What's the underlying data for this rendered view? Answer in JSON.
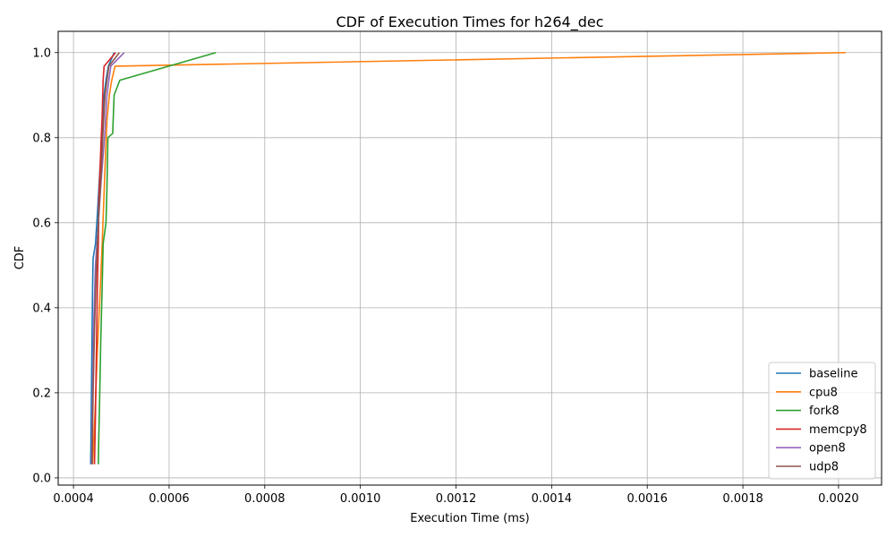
{
  "chart_data": {
    "type": "line",
    "title": "CDF of Execution Times for h264_dec",
    "xlabel": "Execution Time (ms)",
    "ylabel": "CDF",
    "xlim": [
      0.000368,
      0.00209
    ],
    "ylim": [
      -0.017,
      1.05
    ],
    "xticks": [
      {
        "value": 0.0004,
        "label": "0.0004"
      },
      {
        "value": 0.0006,
        "label": "0.0006"
      },
      {
        "value": 0.0008,
        "label": "0.0008"
      },
      {
        "value": 0.001,
        "label": "0.0010"
      },
      {
        "value": 0.0012,
        "label": "0.0012"
      },
      {
        "value": 0.0014,
        "label": "0.0014"
      },
      {
        "value": 0.0016,
        "label": "0.0016"
      },
      {
        "value": 0.0018,
        "label": "0.0018"
      },
      {
        "value": 0.002,
        "label": "0.0020"
      }
    ],
    "yticks": [
      {
        "value": 0.0,
        "label": "0.0"
      },
      {
        "value": 0.2,
        "label": "0.2"
      },
      {
        "value": 0.4,
        "label": "0.4"
      },
      {
        "value": 0.6,
        "label": "0.6"
      },
      {
        "value": 0.8,
        "label": "0.8"
      },
      {
        "value": 1.0,
        "label": "1.0"
      }
    ],
    "grid": true,
    "legend_position": "bottom-right",
    "series": [
      {
        "name": "baseline",
        "color": "#1f77b4",
        "points": [
          [
            0.000436,
            0.032
          ],
          [
            0.000437,
            0.13
          ],
          [
            0.000438,
            0.25
          ],
          [
            0.000439,
            0.35
          ],
          [
            0.00044,
            0.45
          ],
          [
            0.000441,
            0.516
          ],
          [
            0.000446,
            0.55
          ],
          [
            0.00045,
            0.62
          ],
          [
            0.000455,
            0.72
          ],
          [
            0.00046,
            0.8
          ],
          [
            0.000464,
            0.9
          ],
          [
            0.000468,
            0.935
          ],
          [
            0.000473,
            0.968
          ],
          [
            0.000485,
            1.0
          ]
        ]
      },
      {
        "name": "cpu8",
        "color": "#ff7f0e",
        "points": [
          [
            0.00044,
            0.032
          ],
          [
            0.000445,
            0.15
          ],
          [
            0.00045,
            0.3
          ],
          [
            0.000455,
            0.42
          ],
          [
            0.00046,
            0.55
          ],
          [
            0.000465,
            0.7
          ],
          [
            0.00047,
            0.84
          ],
          [
            0.000475,
            0.9
          ],
          [
            0.00048,
            0.935
          ],
          [
            0.000487,
            0.968
          ],
          [
            0.002015,
            1.0
          ]
        ]
      },
      {
        "name": "fork8",
        "color": "#2ca02c",
        "points": [
          [
            0.000452,
            0.032
          ],
          [
            0.000453,
            0.1
          ],
          [
            0.000455,
            0.2
          ],
          [
            0.000457,
            0.32
          ],
          [
            0.00046,
            0.45
          ],
          [
            0.000462,
            0.55
          ],
          [
            0.000468,
            0.6
          ],
          [
            0.00047,
            0.68
          ],
          [
            0.000472,
            0.8
          ],
          [
            0.000482,
            0.81
          ],
          [
            0.000483,
            0.84
          ],
          [
            0.000485,
            0.9
          ],
          [
            0.000497,
            0.935
          ],
          [
            0.000698,
            1.0
          ]
        ]
      },
      {
        "name": "memcpy8",
        "color": "#d62728",
        "points": [
          [
            0.000444,
            0.032
          ],
          [
            0.000446,
            0.15
          ],
          [
            0.000448,
            0.3
          ],
          [
            0.00045,
            0.45
          ],
          [
            0.000452,
            0.55
          ],
          [
            0.000453,
            0.65
          ],
          [
            0.000458,
            0.8
          ],
          [
            0.00046,
            0.85
          ],
          [
            0.000462,
            0.935
          ],
          [
            0.000464,
            0.968
          ],
          [
            0.000488,
            1.0
          ]
        ]
      },
      {
        "name": "open8",
        "color": "#9467bd",
        "points": [
          [
            0.000438,
            0.032
          ],
          [
            0.00044,
            0.2
          ],
          [
            0.000442,
            0.35
          ],
          [
            0.000446,
            0.5
          ],
          [
            0.000452,
            0.6
          ],
          [
            0.000458,
            0.7
          ],
          [
            0.000465,
            0.8
          ],
          [
            0.00047,
            0.9
          ],
          [
            0.000474,
            0.935
          ],
          [
            0.000478,
            0.968
          ],
          [
            0.000506,
            1.0
          ]
        ]
      },
      {
        "name": "udp8",
        "color": "#8c564b",
        "points": [
          [
            0.000439,
            0.032
          ],
          [
            0.000441,
            0.2
          ],
          [
            0.000444,
            0.35
          ],
          [
            0.000448,
            0.5
          ],
          [
            0.000453,
            0.62
          ],
          [
            0.000458,
            0.72
          ],
          [
            0.000462,
            0.82
          ],
          [
            0.000466,
            0.9
          ],
          [
            0.00047,
            0.935
          ],
          [
            0.000474,
            0.968
          ],
          [
            0.000496,
            1.0
          ]
        ]
      }
    ]
  }
}
